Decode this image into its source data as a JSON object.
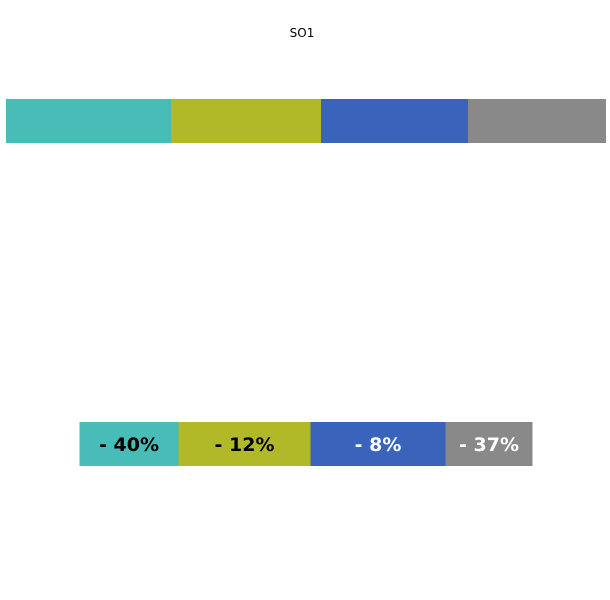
{
  "chart_data": {
    "type": "bar",
    "orientation": "horizontal",
    "stacked": true,
    "title": "",
    "categories": [
      "SO1",
      ""
    ],
    "series": [
      {
        "color": "#48bcb6",
        "values": [
          27.5,
          16.5
        ],
        "label": "- 40%",
        "label_color": "#000000"
      },
      {
        "color": "#b2b928",
        "values": [
          25.0,
          22.0
        ],
        "label": "- 12%",
        "label_color": "#000000"
      },
      {
        "color": "#3a63bc",
        "values": [
          24.5,
          22.5
        ],
        "label": "- 8%",
        "label_color": "#ffffff"
      },
      {
        "color": "#898989",
        "values": [
          23.0,
          14.5
        ],
        "label": "- 37%",
        "label_color": "#ffffff"
      }
    ],
    "xlim": [
      0,
      100
    ],
    "grid": false,
    "legend": "none"
  }
}
